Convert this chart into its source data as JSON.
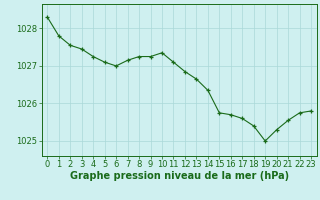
{
  "x": [
    0,
    1,
    2,
    3,
    4,
    5,
    6,
    7,
    8,
    9,
    10,
    11,
    12,
    13,
    14,
    15,
    16,
    17,
    18,
    19,
    20,
    21,
    22,
    23
  ],
  "y": [
    1028.3,
    1027.8,
    1027.55,
    1027.45,
    1027.25,
    1027.1,
    1027.0,
    1027.15,
    1027.25,
    1027.25,
    1027.35,
    1027.1,
    1026.85,
    1026.65,
    1026.35,
    1025.75,
    1025.7,
    1025.6,
    1025.4,
    1025.0,
    1025.3,
    1025.55,
    1025.75,
    1025.8
  ],
  "line_color": "#1a6b1a",
  "marker_color": "#1a6b1a",
  "bg_color": "#cff0f0",
  "grid_color": "#aad8d8",
  "axis_color": "#1a6b1a",
  "label_color": "#1a6b1a",
  "xlabel": "Graphe pression niveau de la mer (hPa)",
  "ylim": [
    1024.6,
    1028.65
  ],
  "xlim": [
    -0.5,
    23.5
  ],
  "yticks": [
    1025,
    1026,
    1027,
    1028
  ],
  "xticks": [
    0,
    1,
    2,
    3,
    4,
    5,
    6,
    7,
    8,
    9,
    10,
    11,
    12,
    13,
    14,
    15,
    16,
    17,
    18,
    19,
    20,
    21,
    22,
    23
  ],
  "font_size_label": 7.0,
  "font_size_tick": 6.0
}
